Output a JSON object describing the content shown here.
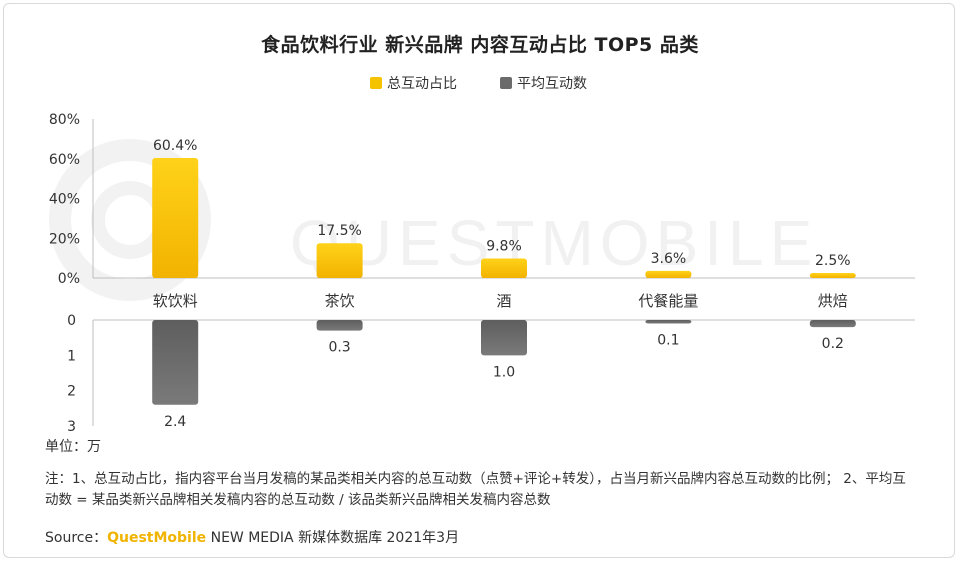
{
  "title": "食品饮料行业 新兴品牌 内容互动占比 TOP5 品类",
  "legend": [
    {
      "label": "总互动占比",
      "color": "#f5c200"
    },
    {
      "label": "平均互动数",
      "color": "#6b6b6b"
    }
  ],
  "watermark": "QUESTMOBILE",
  "unit_label": "单位：万",
  "note": "注：1、总互动占比，指内容平台当月发稿的某品类相关内容的总互动数（点赞+评论+转发），占当月新兴品牌内容总互动数的比例； 2、平均互动数 = 某品类新兴品牌相关发稿内容的总互动数 / 该品类新兴品牌相关发稿内容总数",
  "source": {
    "prefix": "Source：",
    "brand": "QuestMobile",
    "suffix": " NEW MEDIA 新媒体数据库 2021年3月"
  },
  "chart_data": [
    {
      "type": "bar",
      "categories": [
        "软饮料",
        "茶饮",
        "酒",
        "代餐能量",
        "烘焙"
      ],
      "series": [
        {
          "name": "总互动占比",
          "values": [
            60.4,
            17.5,
            9.8,
            3.6,
            2.5
          ]
        }
      ],
      "value_labels": [
        "60.4%",
        "17.5%",
        "9.8%",
        "3.6%",
        "2.5%"
      ],
      "ylim": [
        0,
        80
      ],
      "yticks": [
        "80%",
        "60%",
        "40%",
        "20%",
        "0%"
      ],
      "grid": false,
      "bar_color": "#f5c200"
    },
    {
      "type": "bar",
      "orientation": "downward",
      "categories": [
        "软饮料",
        "茶饮",
        "酒",
        "代餐能量",
        "烘焙"
      ],
      "series": [
        {
          "name": "平均互动数",
          "values": [
            2.4,
            0.3,
            1.0,
            0.1,
            0.2
          ]
        }
      ],
      "value_labels": [
        "2.4",
        "0.3",
        "1.0",
        "0.1",
        "0.2"
      ],
      "ylim": [
        0,
        3
      ],
      "yticks": [
        "0",
        "1",
        "2",
        "3"
      ],
      "grid": false,
      "bar_color": "#6b6b6b"
    }
  ]
}
